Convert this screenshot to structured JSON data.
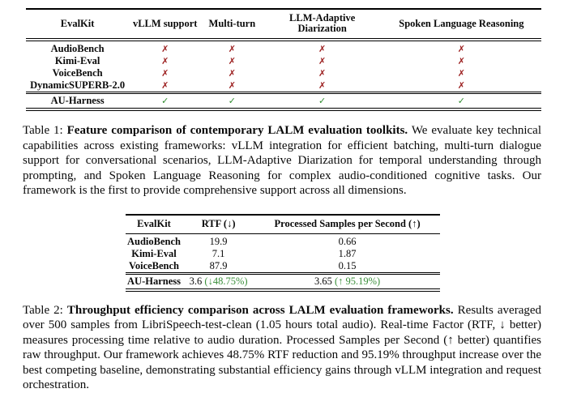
{
  "colors": {
    "cross": "#9b1d1d",
    "check": "#2e8b2e",
    "delta_green": "#3a8f3a"
  },
  "table1": {
    "headers": [
      "EvalKit",
      "vLLM support",
      "Multi-turn",
      "LLM-Adaptive Diarization",
      "Spoken Language Reasoning"
    ],
    "rows": [
      {
        "evalkit": "AudioBench",
        "marks": [
          "✗",
          "✗",
          "✗",
          "✗"
        ]
      },
      {
        "evalkit": "Kimi-Eval",
        "marks": [
          "✗",
          "✗",
          "✗",
          "✗"
        ]
      },
      {
        "evalkit": "VoiceBench",
        "marks": [
          "✗",
          "✗",
          "✗",
          "✗"
        ]
      },
      {
        "evalkit": "DynamicSUPERB-2.0",
        "marks": [
          "✗",
          "✗",
          "✗",
          "✗"
        ]
      },
      {
        "evalkit": "AU-Harness",
        "marks": [
          "✓",
          "✓",
          "✓",
          "✓"
        ]
      }
    ],
    "caption": {
      "label": "Table 1:",
      "title": "Feature comparison of contemporary LALM evaluation toolkits.",
      "body": "We evaluate key technical capabilities across existing frameworks: vLLM integration for efficient batching, multi-turn dialogue support for conversational scenarios, LLM-Adaptive Diarization for temporal understanding through prompting, and Spoken Language Reasoning for complex audio-conditioned cognitive tasks. Our framework is the first to provide comprehensive support across all dimensions."
    }
  },
  "table2": {
    "headers": [
      "EvalKit",
      "RTF (↓)",
      "Processed Samples per Second (↑)"
    ],
    "rows": [
      {
        "evalkit": "AudioBench",
        "rtf": "19.9",
        "psps": "0.66"
      },
      {
        "evalkit": "Kimi-Eval",
        "rtf": "7.1",
        "psps": "1.87"
      },
      {
        "evalkit": "VoiceBench",
        "rtf": "87.9",
        "psps": "0.15"
      }
    ],
    "highlight_row": {
      "evalkit": "AU-Harness",
      "rtf": "3.6",
      "rtf_delta": "(↓48.75%)",
      "psps": "3.65",
      "psps_delta": "(↑ 95.19%)"
    },
    "caption": {
      "label": "Table 2:",
      "title": "Throughput efficiency comparison across LALM evaluation frameworks.",
      "body": "Results averaged over 500 samples from LibriSpeech-test-clean (1.05 hours total audio). Real-time Factor (RTF, ↓ better) measures processing time relative to audio duration. Processed Samples per Second (↑ better) quantifies raw throughput. Our framework achieves 48.75% RTF reduction and 95.19% throughput increase over the best competing baseline, demonstrating substantial efficiency gains through vLLM integration and request orchestration."
    }
  }
}
